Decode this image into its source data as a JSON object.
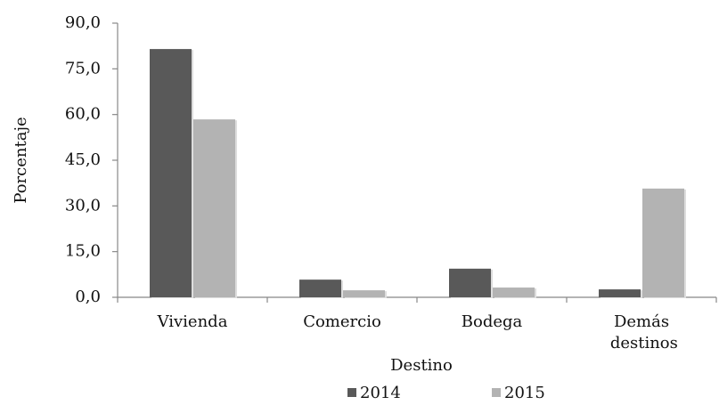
{
  "chart_data": {
    "type": "bar",
    "categories": [
      "Vivienda",
      "Comercio",
      "Bodega",
      "Demás destinos"
    ],
    "x_label": "Destino",
    "y_label": "Porcentaje",
    "series": [
      {
        "name": "2014",
        "color": "#595959",
        "values": [
          81.5,
          5.8,
          9.4,
          2.6
        ]
      },
      {
        "name": "2015",
        "color": "#b3b3b3",
        "values": [
          58.4,
          2.3,
          3.2,
          35.7
        ]
      }
    ],
    "ylim": [
      0,
      90
    ],
    "yticks": [
      {
        "value": 0,
        "label": "0,0"
      },
      {
        "value": 15,
        "label": "15,0"
      },
      {
        "value": 30,
        "label": "30,0"
      },
      {
        "value": 45,
        "label": "45,0"
      },
      {
        "value": 60,
        "label": "60,0"
      },
      {
        "value": 75,
        "label": "75,0"
      },
      {
        "value": 90,
        "label": "90,0"
      }
    ],
    "grid": false,
    "legend": "bottom"
  }
}
